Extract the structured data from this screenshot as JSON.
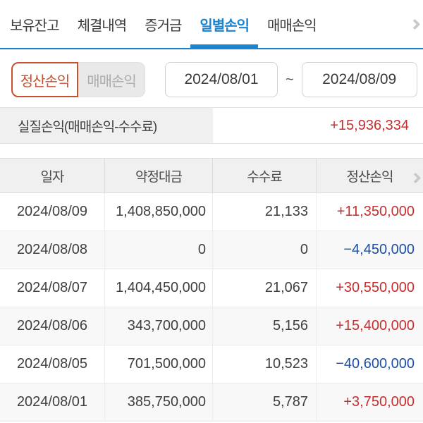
{
  "tabs": {
    "items": [
      {
        "key": "holdings",
        "label": "보유잔고",
        "active": false
      },
      {
        "key": "executions",
        "label": "체결내역",
        "active": false
      },
      {
        "key": "margin",
        "label": "증거금",
        "active": false
      },
      {
        "key": "daily-pnl",
        "label": "일별손익",
        "active": true
      },
      {
        "key": "trading-pnl",
        "label": "매매손익",
        "active": false
      }
    ],
    "overflow_icon": "chevron-right-icon"
  },
  "filters": {
    "toggle": [
      {
        "key": "settlement-pnl",
        "label": "정산손익",
        "selected": true
      },
      {
        "key": "trading-pnl",
        "label": "매매손익",
        "selected": false
      }
    ],
    "date_from": "2024/08/01",
    "date_separator": "~",
    "date_to": "2024/08/09"
  },
  "summary": {
    "label": "실질손익(매매손익-수수료)",
    "value": "+15,936,334"
  },
  "table": {
    "headers": [
      "일자",
      "약정대금",
      "수수료",
      "정산손익"
    ],
    "scroll_icon": "chevron-right-icon",
    "rows": [
      {
        "date": "2024/08/09",
        "amount": "1,408,850,000",
        "fee": "21,133",
        "pnl": "+11,350,000"
      },
      {
        "date": "2024/08/08",
        "amount": "0",
        "fee": "0",
        "pnl": "−4,450,000"
      },
      {
        "date": "2024/08/07",
        "amount": "1,404,450,000",
        "fee": "21,067",
        "pnl": "+30,550,000"
      },
      {
        "date": "2024/08/06",
        "amount": "343,700,000",
        "fee": "5,156",
        "pnl": "+15,400,000"
      },
      {
        "date": "2024/08/05",
        "amount": "701,500,000",
        "fee": "10,523",
        "pnl": "−40,600,000"
      },
      {
        "date": "2024/08/01",
        "amount": "385,750,000",
        "fee": "5,787",
        "pnl": "+3,750,000"
      }
    ]
  },
  "colors": {
    "accent_blue": "#1b84d1",
    "toggle_accent": "#c7502e",
    "positive_red": "#c62f2f",
    "negative_blue": "#1e4fa5"
  }
}
